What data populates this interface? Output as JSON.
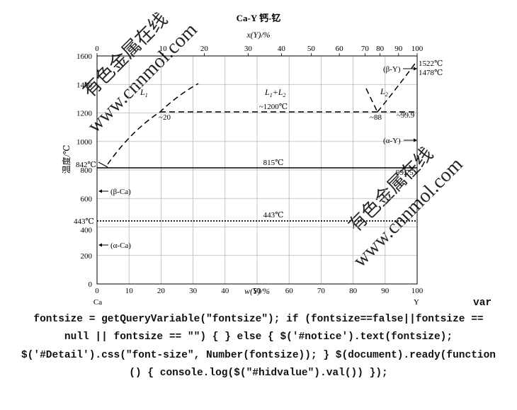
{
  "title": "Ca-Y  钙-钇",
  "top_axis": {
    "label": "x(Y)/%",
    "ticks": [
      "0",
      "10",
      "20",
      "30",
      "40",
      "50",
      "60",
      "70",
      "80",
      "90",
      "100"
    ],
    "positions": [
      0,
      10,
      20,
      30,
      40,
      50,
      60,
      70,
      80,
      90,
      100
    ]
  },
  "bottom_axis": {
    "label": "w(Y)/%",
    "ticks": [
      "0",
      "10",
      "20",
      "30",
      "40",
      "50",
      "60",
      "70",
      "80",
      "90",
      "100"
    ],
    "left_element": "Ca",
    "right_element": "Y"
  },
  "y_axis": {
    "label": "温度/℃",
    "ticks": [
      "0",
      "200",
      "400",
      "600",
      "800",
      "1000",
      "1200",
      "1400",
      "1600"
    ],
    "range": [
      0,
      1600
    ]
  },
  "annotations": {
    "ca_melt": "842℃",
    "ca_trans": "443℃",
    "y_melt": "1522℃",
    "y_trans": "1478℃",
    "phase_L1": "L",
    "phase_L1_sub": "1",
    "phase_L1L2": "L",
    "phase_L1L2_sub1": "1",
    "phase_L1L2_plus": "+L",
    "phase_L1L2_sub2": "2",
    "phase_L2": "L",
    "phase_L2_sub": "2",
    "monotectic_temp": "~1200℃",
    "comp_20": "~20",
    "comp_88": "~88",
    "comp_999": "~99.9",
    "eutectic_815": "815℃",
    "comp_9975": "99.75",
    "trans_443": "443℃",
    "beta_y": "(β-Y)",
    "alpha_y": "(α-Y)",
    "beta_ca": "(β-Ca)",
    "alpha_ca": "(α-Ca)"
  },
  "watermarks": [
    "有色金属在线",
    "www.cnnmol.com"
  ],
  "code_lines": [
    "var",
    "fontsize = getQueryVariable(\"fontsize\"); if (fontsize==false||fontsize ==",
    "null || fontsize == \"\") { } else { $('#notice').text(fontsize);",
    "$('#Detail').css(\"font-size\", Number(fontsize)); } $(document).ready(function",
    "() { console.log($(\"#hidvalue\").val()) });"
  ]
}
